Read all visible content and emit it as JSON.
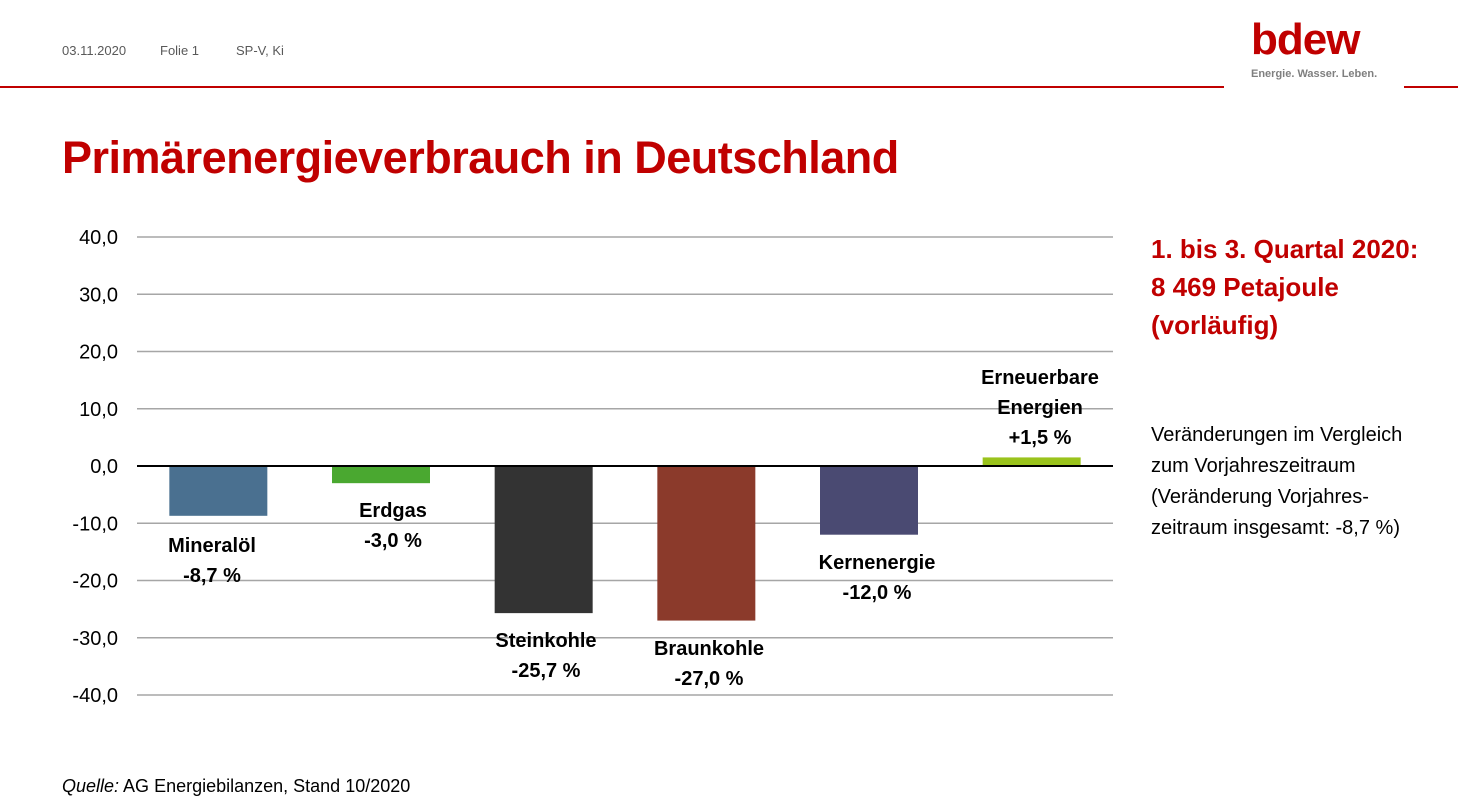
{
  "header": {
    "date": "03.11.2020",
    "slide": "Folie 1",
    "author": "SP-V, Ki"
  },
  "logo": {
    "wordmark": "bdew",
    "tagline": "Energie. Wasser. Leben."
  },
  "colors": {
    "brand_red": "#c00000"
  },
  "title": "Primärenergieverbrauch in Deutschland",
  "chart_data": {
    "type": "bar",
    "y_ticks": [
      "40,0",
      "30,0",
      "20,0",
      "10,0",
      "0,0",
      "-10,0",
      "-20,0",
      "-30,0",
      "-40,0"
    ],
    "ylim": [
      -40,
      40
    ],
    "grid": true,
    "categories": [
      "Mineralöl",
      "Erdgas",
      "Steinkohle",
      "Braunkohle",
      "Kernenergie",
      "Erneuerbare Energien"
    ],
    "values": [
      -8.7,
      -3.0,
      -25.7,
      -27.0,
      -12.0,
      1.5
    ],
    "labels": [
      [
        "Mineralöl",
        "-8,7 %"
      ],
      [
        "Erdgas",
        "-3,0 %"
      ],
      [
        "Steinkohle",
        "-25,7 %"
      ],
      [
        "Braunkohle",
        "-27,0 %"
      ],
      [
        "Kernenergie",
        "-12,0 %"
      ],
      [
        "Erneuerbare",
        "Energien",
        "+1,5 %"
      ]
    ],
    "colors": [
      "#4a7090",
      "#4aa830",
      "#333333",
      "#8b3a2b",
      "#4a4a72",
      "#9ac31c"
    ]
  },
  "info": {
    "heading": [
      "1. bis 3. Quartal 2020:",
      "8 469 Petajoule",
      "(vorläufig)"
    ],
    "text_lines": [
      "Veränderungen im Vergleich",
      "zum Vorjahreszeitraum",
      "(Veränderung Vorjahres-",
      "zeitraum insgesamt: -8,7 %)"
    ]
  },
  "source": {
    "prefix": "Quelle:",
    "text": " AG Energiebilanzen, Stand 10/2020"
  }
}
